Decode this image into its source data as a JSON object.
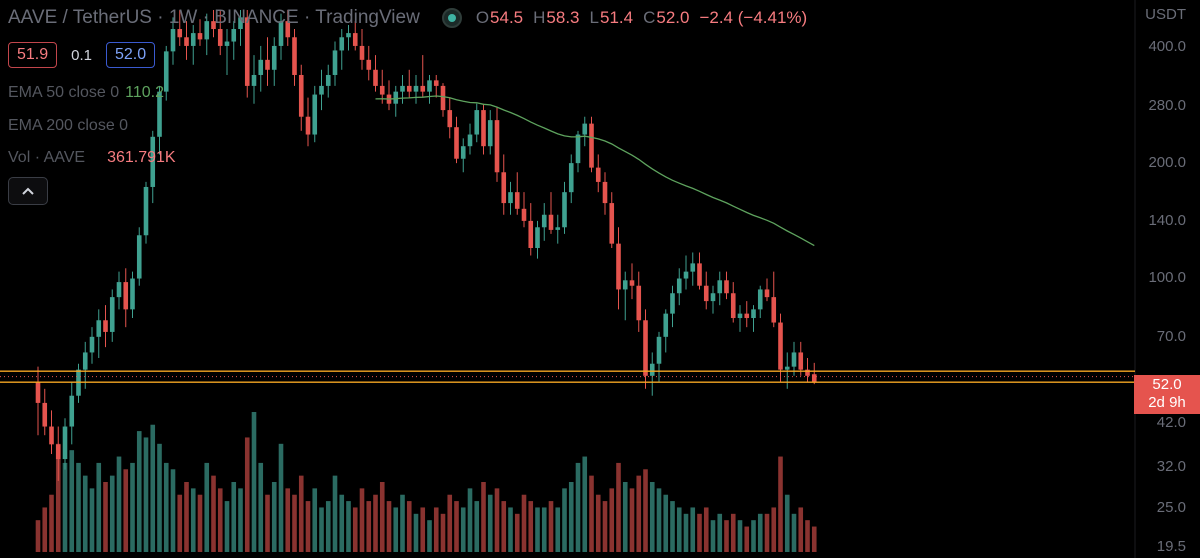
{
  "header": {
    "symbol": "AAVE / TetherUS · 1W · BINANCE · TradingView",
    "ohlc": [
      {
        "k": "O",
        "v": "54.5"
      },
      {
        "k": "H",
        "v": "58.3"
      },
      {
        "k": "L",
        "v": "51.4"
      },
      {
        "k": "C",
        "v": "52.0"
      }
    ],
    "change": "−2.4 (−4.41%)"
  },
  "trade": {
    "sell": "51.9",
    "spread": "0.1",
    "buy": "52.0"
  },
  "indicators": {
    "ema50_label": "EMA 50 close 0",
    "ema50_value": "110.2",
    "ema200_label": "EMA 200 close 0",
    "vol_label": "Vol · AAVE",
    "vol_value": "361.791K"
  },
  "axis": {
    "currency": "USDT",
    "ticks": [
      "400.0",
      "280.0",
      "200.0",
      "140.0",
      "100.0",
      "70.0",
      "42.0",
      "32.0",
      "25.0",
      "19.5"
    ]
  },
  "last_price": {
    "value": "52.0",
    "countdown": "2d 9h"
  },
  "colors": {
    "up": "#3fa190",
    "down": "#e5544e",
    "ema50": "#5ea35e",
    "horizontal_line": "#f5a623"
  },
  "icons": {
    "collapse": "chevron-up-icon",
    "visibility": "eye-icon"
  },
  "chart_data": {
    "type": "candlestick",
    "timeframe": "1W",
    "y_scale": "log",
    "ylim": [
      19.5,
      470
    ],
    "horizontal_levels": [
      52.0,
      55.5
    ],
    "ema50_values": [
      110.2
    ],
    "candles": [
      [
        52,
        57,
        38,
        46,
        5
      ],
      [
        46,
        50,
        38,
        40,
        7
      ],
      [
        40,
        44,
        34,
        36,
        9
      ],
      [
        36,
        40,
        29,
        33,
        17
      ],
      [
        33,
        42,
        31,
        40,
        14
      ],
      [
        40,
        52,
        36,
        48,
        16
      ],
      [
        48,
        58,
        46,
        56,
        14
      ],
      [
        56,
        66,
        50,
        62,
        12
      ],
      [
        62,
        72,
        58,
        68,
        10
      ],
      [
        68,
        80,
        60,
        75,
        14
      ],
      [
        75,
        82,
        64,
        70,
        11
      ],
      [
        70,
        90,
        66,
        86,
        12
      ],
      [
        86,
        100,
        80,
        94,
        15
      ],
      [
        94,
        102,
        72,
        80,
        13
      ],
      [
        80,
        100,
        76,
        96,
        14
      ],
      [
        96,
        130,
        92,
        124,
        19
      ],
      [
        124,
        170,
        118,
        165,
        18
      ],
      [
        165,
        230,
        150,
        222,
        20
      ],
      [
        222,
        300,
        200,
        290,
        17
      ],
      [
        290,
        380,
        275,
        368,
        14
      ],
      [
        368,
        450,
        340,
        420,
        13
      ],
      [
        420,
        470,
        380,
        400,
        9
      ],
      [
        400,
        440,
        350,
        380,
        11
      ],
      [
        380,
        430,
        340,
        410,
        10
      ],
      [
        410,
        445,
        380,
        395,
        9
      ],
      [
        395,
        460,
        360,
        440,
        14
      ],
      [
        440,
        470,
        400,
        420,
        12
      ],
      [
        420,
        470,
        360,
        380,
        10
      ],
      [
        380,
        420,
        320,
        390,
        8
      ],
      [
        390,
        440,
        350,
        420,
        11
      ],
      [
        420,
        470,
        380,
        450,
        10
      ],
      [
        450,
        470,
        280,
        300,
        18
      ],
      [
        300,
        360,
        270,
        320,
        22
      ],
      [
        320,
        380,
        290,
        350,
        14
      ],
      [
        350,
        400,
        300,
        330,
        9
      ],
      [
        330,
        400,
        300,
        380,
        11
      ],
      [
        380,
        460,
        350,
        440,
        17
      ],
      [
        440,
        470,
        380,
        400,
        10
      ],
      [
        400,
        420,
        300,
        320,
        9
      ],
      [
        320,
        340,
        230,
        250,
        12
      ],
      [
        250,
        280,
        210,
        225,
        8
      ],
      [
        225,
        300,
        215,
        285,
        10
      ],
      [
        285,
        330,
        260,
        300,
        7
      ],
      [
        300,
        340,
        280,
        320,
        8
      ],
      [
        320,
        390,
        300,
        370,
        12
      ],
      [
        370,
        420,
        330,
        400,
        9
      ],
      [
        400,
        430,
        370,
        410,
        8
      ],
      [
        410,
        440,
        370,
        380,
        7
      ],
      [
        380,
        420,
        330,
        350,
        10
      ],
      [
        350,
        380,
        310,
        330,
        8
      ],
      [
        330,
        360,
        290,
        300,
        9
      ],
      [
        300,
        330,
        270,
        285,
        11
      ],
      [
        285,
        310,
        260,
        270,
        8
      ],
      [
        270,
        300,
        250,
        290,
        7
      ],
      [
        290,
        320,
        270,
        300,
        9
      ],
      [
        300,
        330,
        280,
        290,
        8
      ],
      [
        290,
        320,
        270,
        300,
        6
      ],
      [
        300,
        360,
        280,
        290,
        7
      ],
      [
        290,
        320,
        270,
        310,
        5
      ],
      [
        310,
        320,
        280,
        300,
        7
      ],
      [
        300,
        305,
        250,
        260,
        6
      ],
      [
        260,
        280,
        220,
        235,
        9
      ],
      [
        235,
        250,
        190,
        195,
        8
      ],
      [
        195,
        220,
        180,
        210,
        7
      ],
      [
        210,
        240,
        200,
        225,
        10
      ],
      [
        225,
        270,
        215,
        260,
        8
      ],
      [
        260,
        270,
        200,
        210,
        11
      ],
      [
        210,
        260,
        200,
        245,
        9
      ],
      [
        245,
        265,
        170,
        180,
        10
      ],
      [
        180,
        200,
        140,
        150,
        8
      ],
      [
        150,
        170,
        140,
        160,
        7
      ],
      [
        160,
        180,
        140,
        145,
        6
      ],
      [
        145,
        160,
        130,
        135,
        9
      ],
      [
        135,
        150,
        110,
        115,
        8
      ],
      [
        115,
        135,
        108,
        130,
        7
      ],
      [
        130,
        150,
        120,
        140,
        7
      ],
      [
        140,
        160,
        125,
        128,
        8
      ],
      [
        128,
        140,
        118,
        130,
        7
      ],
      [
        130,
        170,
        125,
        160,
        10
      ],
      [
        160,
        200,
        150,
        190,
        11
      ],
      [
        190,
        230,
        180,
        225,
        14
      ],
      [
        225,
        250,
        210,
        240,
        15
      ],
      [
        240,
        250,
        180,
        185,
        12
      ],
      [
        185,
        200,
        160,
        170,
        9
      ],
      [
        170,
        180,
        140,
        150,
        8
      ],
      [
        150,
        160,
        115,
        118,
        10
      ],
      [
        118,
        130,
        80,
        90,
        14
      ],
      [
        90,
        100,
        75,
        95,
        11
      ],
      [
        95,
        105,
        85,
        92,
        10
      ],
      [
        92,
        100,
        70,
        75,
        12
      ],
      [
        75,
        80,
        50,
        54,
        13
      ],
      [
        54,
        62,
        48,
        58,
        11
      ],
      [
        58,
        70,
        52,
        68,
        10
      ],
      [
        68,
        80,
        62,
        78,
        9
      ],
      [
        78,
        92,
        72,
        88,
        8
      ],
      [
        88,
        102,
        82,
        96,
        7
      ],
      [
        96,
        110,
        90,
        100,
        6
      ],
      [
        100,
        112,
        92,
        105,
        7
      ],
      [
        105,
        112,
        90,
        92,
        6
      ],
      [
        92,
        100,
        80,
        84,
        7
      ],
      [
        84,
        92,
        78,
        88,
        5
      ],
      [
        88,
        100,
        82,
        95,
        6
      ],
      [
        95,
        100,
        85,
        88,
        5
      ],
      [
        88,
        94,
        74,
        76,
        6
      ],
      [
        76,
        82,
        70,
        78,
        5
      ],
      [
        78,
        84,
        72,
        76,
        4
      ],
      [
        76,
        82,
        70,
        80,
        5
      ],
      [
        80,
        92,
        76,
        90,
        6
      ],
      [
        90,
        96,
        84,
        86,
        6
      ],
      [
        86,
        100,
        72,
        74,
        7
      ],
      [
        74,
        78,
        52,
        56,
        15
      ],
      [
        56,
        62,
        50,
        57,
        9
      ],
      [
        57,
        66,
        54,
        62,
        6
      ],
      [
        62,
        66,
        54,
        56,
        7
      ],
      [
        56,
        60,
        52,
        54,
        5
      ],
      [
        54.5,
        58.3,
        51.4,
        52,
        4
      ]
    ]
  }
}
